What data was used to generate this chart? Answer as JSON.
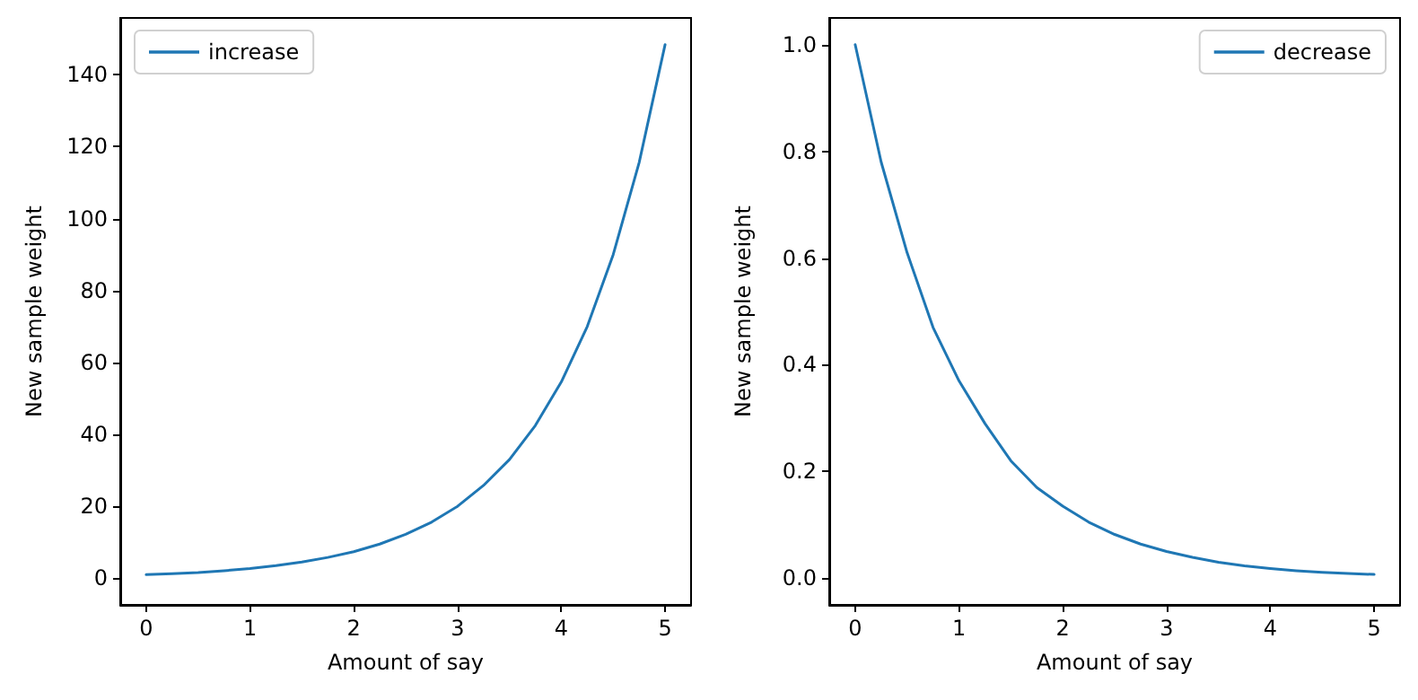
{
  "chart_data": [
    {
      "type": "line",
      "xlabel": "Amount of say",
      "ylabel": "New sample weight",
      "x": [
        0,
        0.25,
        0.5,
        0.75,
        1,
        1.25,
        1.5,
        1.75,
        2,
        2.25,
        2.5,
        2.75,
        3,
        3.25,
        3.5,
        3.75,
        4,
        4.25,
        4.5,
        4.75,
        5
      ],
      "series": [
        {
          "name": "increase",
          "color": "#1f77b4",
          "values": [
            1,
            1.3,
            1.6,
            2.1,
            2.7,
            3.5,
            4.5,
            5.8,
            7.4,
            9.5,
            12.2,
            15.6,
            20,
            25.8,
            33,
            42.5,
            54.6,
            70,
            90,
            115.6,
            148.4
          ]
        }
      ],
      "xlim": [
        -0.25,
        5.25
      ],
      "xticks": [
        0,
        1,
        2,
        3,
        4,
        5
      ],
      "ylim": [
        -7.4,
        155.8
      ],
      "yticks": [
        0,
        20,
        40,
        60,
        80,
        100,
        120,
        140
      ],
      "grid": false,
      "legend": "top left",
      "marker": "none",
      "line_style": "solid"
    },
    {
      "type": "line",
      "xlabel": "Amount of say",
      "ylabel": "New sample weight",
      "x": [
        0,
        0.25,
        0.5,
        0.75,
        1,
        1.25,
        1.5,
        1.75,
        2,
        2.25,
        2.5,
        2.75,
        3,
        3.25,
        3.5,
        3.75,
        4,
        4.25,
        4.5,
        4.75,
        5
      ],
      "series": [
        {
          "name": "decrease",
          "color": "#1f77b4",
          "values": [
            1,
            0.78,
            0.61,
            0.47,
            0.37,
            0.29,
            0.22,
            0.17,
            0.135,
            0.105,
            0.082,
            0.064,
            0.05,
            0.039,
            0.03,
            0.023,
            0.018,
            0.014,
            0.011,
            0.009,
            0.007
          ]
        }
      ],
      "xlim": [
        -0.25,
        5.25
      ],
      "xticks": [
        0,
        1,
        2,
        3,
        4,
        5
      ],
      "ylim": [
        -0.05,
        1.05
      ],
      "yticks": [
        {
          "value": 0,
          "label": "0.0"
        },
        {
          "value": 0.2,
          "label": "0.2"
        },
        {
          "value": 0.4,
          "label": "0.4"
        },
        {
          "value": 0.6,
          "label": "0.6"
        },
        {
          "value": 0.8,
          "label": "0.8"
        },
        {
          "value": 1,
          "label": "1.0"
        }
      ],
      "grid": false,
      "legend": "top right",
      "marker": "none",
      "line_style": "solid"
    }
  ]
}
